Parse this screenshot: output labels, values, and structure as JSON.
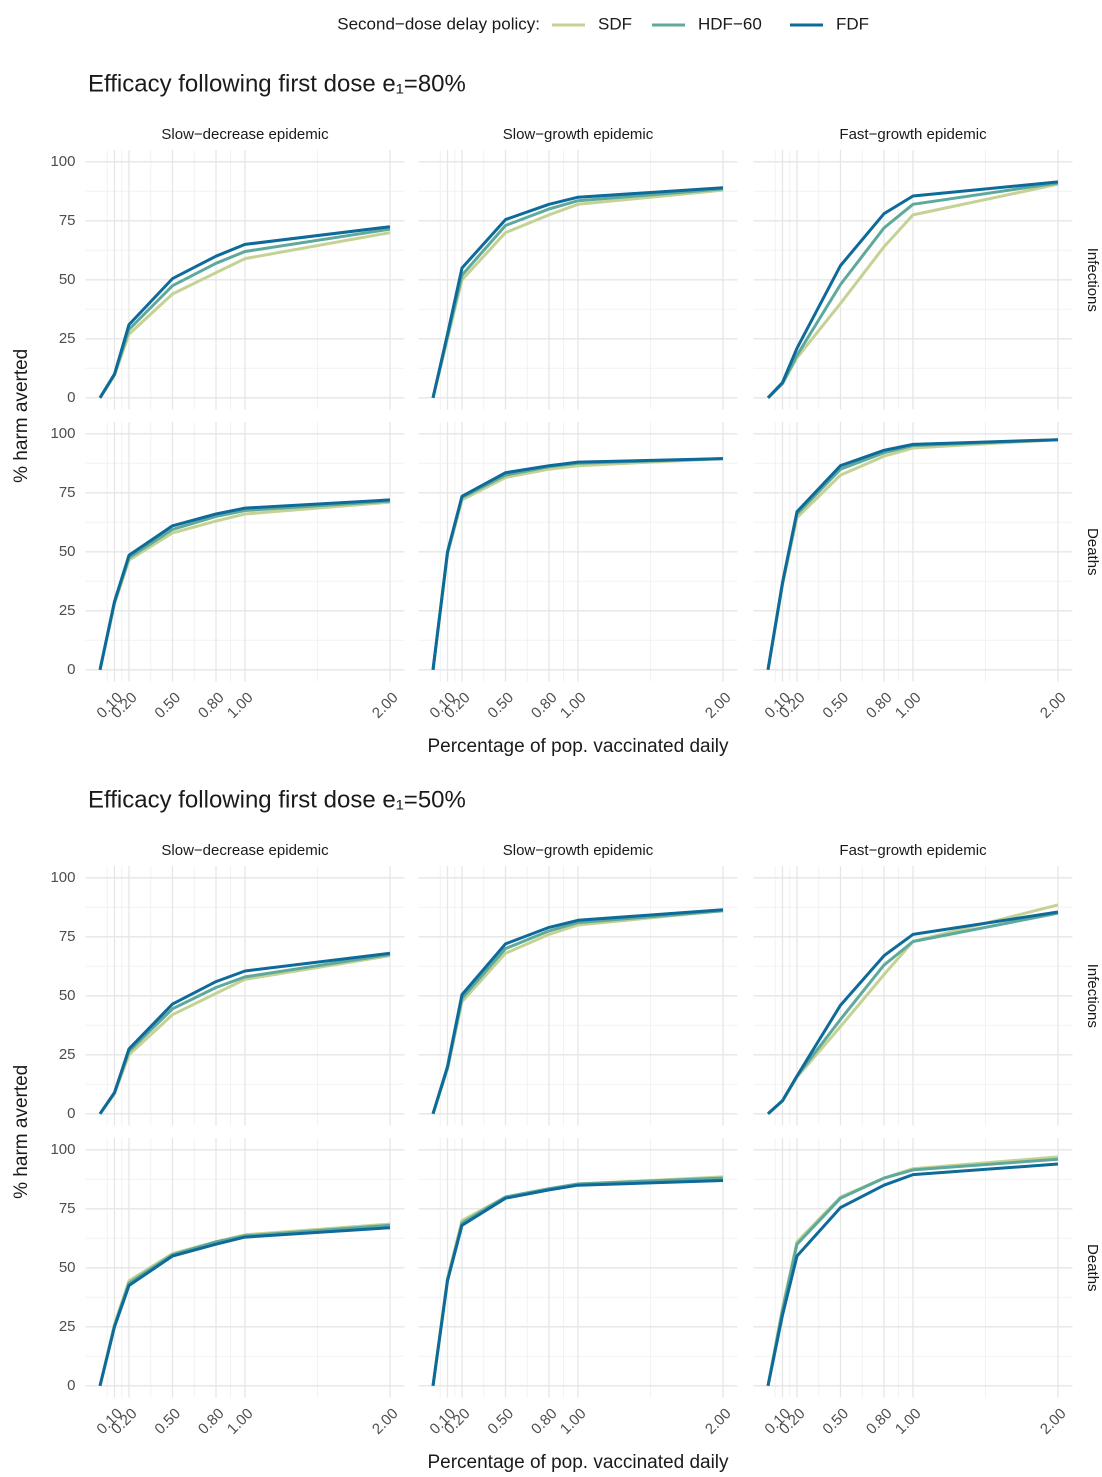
{
  "legend": {
    "title": "Second−dose delay policy:",
    "series": [
      {
        "name": "SDF",
        "color": "#c4d293"
      },
      {
        "name": "HDF−60",
        "color": "#5ea99c"
      },
      {
        "name": "FDF",
        "color": "#0d6a99"
      }
    ]
  },
  "chart_data": [
    {
      "type": "line",
      "title": "Efficacy following first dose e₁=80%",
      "x_label": "Percentage of pop. vaccinated daily",
      "y_label": "% harm averted",
      "columns": [
        "Slow−decrease epidemic",
        "Slow−growth epidemic",
        "Fast−growth epidemic"
      ],
      "rows": [
        "Infections",
        "Deaths"
      ],
      "x": [
        0,
        0.1,
        0.2,
        0.5,
        0.8,
        1,
        2
      ],
      "xlim": [
        -0.1,
        2.1
      ],
      "xticks": [
        {
          "value": 0.1,
          "label": "0.10"
        },
        {
          "value": 0.2,
          "label": "0.20"
        },
        {
          "value": 0.5,
          "label": "0.50"
        },
        {
          "value": 0.8,
          "label": "0.80"
        },
        {
          "value": 1,
          "label": "1.00"
        },
        {
          "value": 2,
          "label": "2.00"
        }
      ],
      "xminor": [
        0.05,
        0.15,
        0.35,
        0.65,
        0.9,
        1.5
      ],
      "ylim": [
        -5,
        105
      ],
      "yticks": [
        0,
        25,
        50,
        75,
        100
      ],
      "yminor": [
        12.5,
        37.5,
        62.5,
        87.5
      ],
      "grid": true,
      "panels": [
        {
          "values": [
            [
              0,
              9.5,
              27,
              44,
              53,
              59,
              70
            ],
            [
              0,
              10,
              29,
              47.5,
              57,
              62,
              71.5
            ],
            [
              0,
              10,
              31,
              50.5,
              60,
              65,
              72.5
            ]
          ]
        },
        {
          "values": [
            [
              0,
              25,
              50,
              70,
              77.5,
              82,
              88
            ],
            [
              0,
              26,
              52,
              73,
              80,
              83.5,
              88.5
            ],
            [
              0,
              27,
              55,
              75.5,
              82,
              85,
              89
            ]
          ]
        },
        {
          "values": [
            [
              0,
              6,
              17,
              40,
              64,
              77.5,
              90.5
            ],
            [
              0,
              6,
              18,
              48,
              72,
              82,
              91
            ],
            [
              0,
              6.5,
              21,
              56,
              78,
              85.5,
              91.5
            ]
          ]
        },
        {
          "values": [
            [
              0,
              28,
              46.5,
              58,
              63,
              66,
              71
            ],
            [
              0,
              28.5,
              47.5,
              59.5,
              65,
              67.5,
              71.5
            ],
            [
              0,
              29,
              48.5,
              61,
              66,
              68.5,
              72
            ]
          ]
        },
        {
          "values": [
            [
              0,
              49,
              72,
              81.5,
              85,
              86.5,
              89.5
            ],
            [
              0,
              49.5,
              73,
              82.5,
              86,
              87.5,
              89.5
            ],
            [
              0,
              50,
              73.5,
              83.5,
              86.5,
              88,
              89.5
            ]
          ]
        },
        {
          "values": [
            [
              0,
              36,
              64.5,
              82.5,
              90.5,
              94,
              97.5
            ],
            [
              0,
              36.5,
              66,
              85,
              92,
              95,
              97.5
            ],
            [
              0,
              37,
              67,
              86.5,
              93,
              95.5,
              97.5
            ]
          ]
        }
      ]
    },
    {
      "type": "line",
      "title": "Efficacy following first dose e₁=50%",
      "x_label": "Percentage of pop. vaccinated daily",
      "y_label": "% harm averted",
      "columns": [
        "Slow−decrease epidemic",
        "Slow−growth epidemic",
        "Fast−growth epidemic"
      ],
      "rows": [
        "Infections",
        "Deaths"
      ],
      "x": [
        0,
        0.1,
        0.2,
        0.5,
        0.8,
        1,
        2
      ],
      "xlim": [
        -0.1,
        2.1
      ],
      "xticks": [
        {
          "value": 0.1,
          "label": "0.10"
        },
        {
          "value": 0.2,
          "label": "0.20"
        },
        {
          "value": 0.5,
          "label": "0.50"
        },
        {
          "value": 0.8,
          "label": "0.80"
        },
        {
          "value": 1,
          "label": "1.00"
        },
        {
          "value": 2,
          "label": "2.00"
        }
      ],
      "xminor": [
        0.05,
        0.15,
        0.35,
        0.65,
        0.9,
        1.5
      ],
      "ylim": [
        -5,
        105
      ],
      "yticks": [
        0,
        25,
        50,
        75,
        100
      ],
      "yminor": [
        12.5,
        37.5,
        62.5,
        87.5
      ],
      "grid": true,
      "panels": [
        {
          "values": [
            [
              0,
              8.5,
              25,
              42,
              51,
              57,
              67
            ],
            [
              0,
              9,
              26.5,
              44.5,
              53.5,
              58,
              67.5
            ],
            [
              0,
              9,
              27.5,
              46.5,
              56,
              60.5,
              68
            ]
          ]
        },
        {
          "values": [
            [
              0,
              19,
              47.5,
              68,
              76,
              80,
              86
            ],
            [
              0,
              19.5,
              49,
              70,
              77.5,
              81,
              86
            ],
            [
              0,
              20,
              50.5,
              72,
              79,
              82,
              86.5
            ]
          ]
        },
        {
          "values": [
            [
              0,
              5.5,
              15.5,
              37,
              59,
              73,
              88.5
            ],
            [
              0,
              5.5,
              16,
              40,
              63,
              73,
              85
            ],
            [
              0,
              5.5,
              16,
              46,
              67,
              76,
              85.5
            ]
          ]
        },
        {
          "values": [
            [
              0,
              26,
              44.5,
              56,
              61,
              64,
              68.5
            ],
            [
              0,
              25.5,
              43.5,
              55.5,
              61,
              63.5,
              68
            ],
            [
              0,
              25,
              42.5,
              55,
              60,
              63,
              67
            ]
          ]
        },
        {
          "values": [
            [
              0,
              45.5,
              70,
              80,
              83.5,
              85.5,
              88.5
            ],
            [
              0,
              45,
              69,
              80,
              83.5,
              85.5,
              88
            ],
            [
              0,
              44.5,
              68,
              79.5,
              83,
              85,
              87
            ]
          ]
        },
        {
          "values": [
            [
              0,
              33,
              61,
              80,
              88,
              92,
              97
            ],
            [
              0,
              32,
              60,
              79.5,
              88,
              91.5,
              96
            ],
            [
              0,
              30,
              55,
              75.5,
              85,
              89.5,
              94
            ]
          ]
        }
      ]
    }
  ]
}
